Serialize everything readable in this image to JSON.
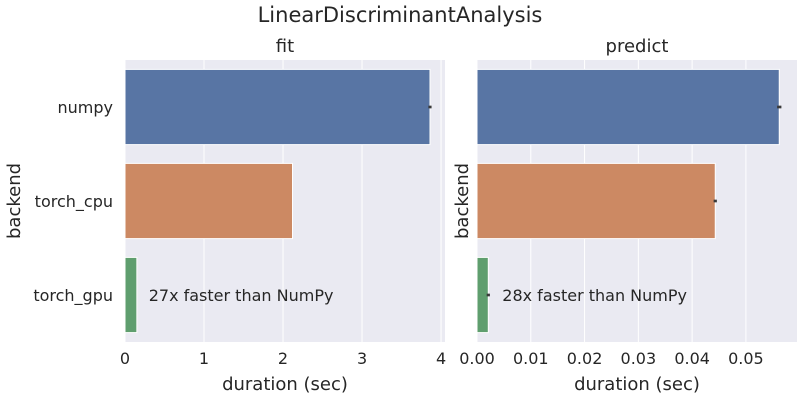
{
  "suptitle": "LinearDiscriminantAnalysis",
  "chart_data": [
    {
      "type": "bar",
      "orientation": "horizontal",
      "title": "fit",
      "xlabel": "duration (sec)",
      "ylabel": "backend",
      "categories": [
        "numpy",
        "torch_cpu",
        "torch_gpu"
      ],
      "values": [
        3.86,
        2.12,
        0.15
      ],
      "errors": [
        0.02,
        0.0,
        0.0
      ],
      "colors": [
        "#5875a4",
        "#cc8963",
        "#5f9e6e"
      ],
      "xlim": [
        0,
        4.05
      ],
      "xticks": [
        0,
        1,
        2,
        3,
        4
      ],
      "xtick_labels": [
        "0",
        "1",
        "2",
        "3",
        "4"
      ],
      "grid": true,
      "annotation": {
        "category": "torch_gpu",
        "text": "27x faster than NumPy",
        "x": 0.3
      }
    },
    {
      "type": "bar",
      "orientation": "horizontal",
      "title": "predict",
      "xlabel": "duration (sec)",
      "ylabel": "backend",
      "categories": [
        "numpy",
        "torch_cpu",
        "torch_gpu"
      ],
      "values": [
        0.0562,
        0.0443,
        0.0021
      ],
      "errors": [
        0.0004,
        0.0003,
        0.0003
      ],
      "colors": [
        "#5875a4",
        "#cc8963",
        "#5f9e6e"
      ],
      "xlim": [
        0,
        0.0595
      ],
      "xticks": [
        0,
        0.01,
        0.02,
        0.03,
        0.04,
        0.05
      ],
      "xtick_labels": [
        "0.00",
        "0.01",
        "0.02",
        "0.03",
        "0.04",
        "0.05"
      ],
      "grid": true,
      "annotation": {
        "category": "torch_gpu",
        "text": "28x faster than NumPy",
        "x": 0.0047
      }
    }
  ]
}
